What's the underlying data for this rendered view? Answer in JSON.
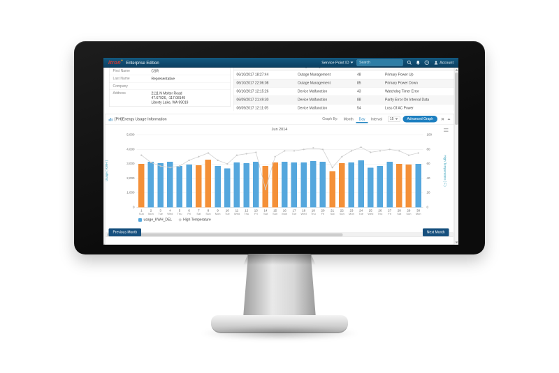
{
  "app": {
    "brand": "itron",
    "product": "Enterprise Edition",
    "nav": {
      "service_point_label": "Service Point ID",
      "search_placeholder": "Search",
      "account_label": "Account"
    }
  },
  "customer": {
    "fields": [
      {
        "label": "First Name",
        "value": "CSR"
      },
      {
        "label": "Last Name",
        "value": "Representative"
      },
      {
        "label": "Company",
        "value": ""
      },
      {
        "label": "Address",
        "value_lines": [
          "2111 N Molter Road",
          "47.67926, -117.08149",
          "Liberty Lake, WA 99019"
        ]
      }
    ]
  },
  "events_table": {
    "rows": [
      {
        "timestamp": "06/11/2017 02:10:14",
        "category": "Outage Management",
        "code": "12",
        "description": "Power Restoration"
      },
      {
        "timestamp": "06/10/2017 18:27:44",
        "category": "Outage Management",
        "code": "48",
        "description": "Primary Power Up"
      },
      {
        "timestamp": "06/10/2017 22:06:08",
        "category": "Outage Management",
        "code": "85",
        "description": "Primary Power Down"
      },
      {
        "timestamp": "06/10/2017 12:15:26",
        "category": "Device Malfunction",
        "code": "43",
        "description": "Watchdog Timer Error"
      },
      {
        "timestamp": "06/09/2017 21:49:30",
        "category": "Device Malfunction",
        "code": "88",
        "description": "Parity Error On Interval Data"
      },
      {
        "timestamp": "06/09/2017 12:11:05",
        "category": "Device Malfunction",
        "code": "54",
        "description": "Loss Of AC Power"
      }
    ]
  },
  "usage_panel": {
    "title": "[PH]Energy Usage Information",
    "graph_by_label": "Graph By:",
    "tabs": [
      {
        "label": "Month",
        "active": false
      },
      {
        "label": "Day",
        "active": true
      },
      {
        "label": "Interval",
        "active": false
      }
    ],
    "interval_select": "15",
    "advanced_button": "Advanced Graph",
    "prev_button": "Previous Month",
    "next_button": "Next Month"
  },
  "chart_data": {
    "type": "bar",
    "title": "Jun 2014",
    "categories": [
      {
        "d": "1",
        "wd": "Sun"
      },
      {
        "d": "2",
        "wd": "Mon"
      },
      {
        "d": "3",
        "wd": "Tue"
      },
      {
        "d": "4",
        "wd": "Wed"
      },
      {
        "d": "5",
        "wd": "Thu"
      },
      {
        "d": "6",
        "wd": "Fri"
      },
      {
        "d": "7",
        "wd": "Sat"
      },
      {
        "d": "8",
        "wd": "Sun"
      },
      {
        "d": "9",
        "wd": "Mon"
      },
      {
        "d": "10",
        "wd": "Tue"
      },
      {
        "d": "11",
        "wd": "Wed"
      },
      {
        "d": "12",
        "wd": "Thu"
      },
      {
        "d": "13",
        "wd": "Fri"
      },
      {
        "d": "14",
        "wd": "Sat"
      },
      {
        "d": "15",
        "wd": "Sun"
      },
      {
        "d": "16",
        "wd": "Mon"
      },
      {
        "d": "17",
        "wd": "Tue"
      },
      {
        "d": "18",
        "wd": "Wed"
      },
      {
        "d": "19",
        "wd": "Thu"
      },
      {
        "d": "20",
        "wd": "Fri"
      },
      {
        "d": "21",
        "wd": "Sat"
      },
      {
        "d": "22",
        "wd": "Sun"
      },
      {
        "d": "23",
        "wd": "Mon"
      },
      {
        "d": "24",
        "wd": "Tue"
      },
      {
        "d": "25",
        "wd": "Wed"
      },
      {
        "d": "26",
        "wd": "Thu"
      },
      {
        "d": "27",
        "wd": "Fri"
      },
      {
        "d": "28",
        "wd": "Sat"
      },
      {
        "d": "29",
        "wd": "Sun"
      },
      {
        "d": "30",
        "wd": "Mon"
      }
    ],
    "series": [
      {
        "name": "usage_KWH_DEL",
        "type": "bar",
        "values": [
          3000,
          3150,
          3050,
          3150,
          2850,
          2950,
          2900,
          3300,
          2850,
          2700,
          3100,
          3050,
          3150,
          2850,
          3100,
          3150,
          3100,
          3100,
          3200,
          3150,
          2500,
          3050,
          3100,
          3250,
          2750,
          2850,
          3150,
          3000,
          2950,
          3000
        ],
        "color_weekday": "#55a7dd",
        "color_weekend": "#f49038"
      },
      {
        "name": "High Temperature",
        "type": "line",
        "values": [
          72,
          62,
          57,
          55,
          57,
          65,
          70,
          75,
          65,
          60,
          72,
          74,
          76,
          25,
          70,
          78,
          78,
          80,
          82,
          80,
          55,
          70,
          78,
          83,
          76,
          78,
          80,
          78,
          72,
          75
        ],
        "color": "#d2d2d2"
      }
    ],
    "weekend_days": [
      1,
      7,
      8,
      14,
      15,
      21,
      22,
      28,
      29
    ],
    "y_left": {
      "title": "Usage ( KWH )",
      "ticks": [
        "5,000",
        "4,000",
        "3,000",
        "2,000",
        "1,000",
        "0"
      ],
      "max": 5000
    },
    "y_right": {
      "title": "High Temperature ( F )",
      "ticks": [
        "100",
        "80",
        "60",
        "40",
        "20",
        "0"
      ],
      "max": 100
    },
    "grid": true,
    "legend_position": "bottom-left"
  }
}
